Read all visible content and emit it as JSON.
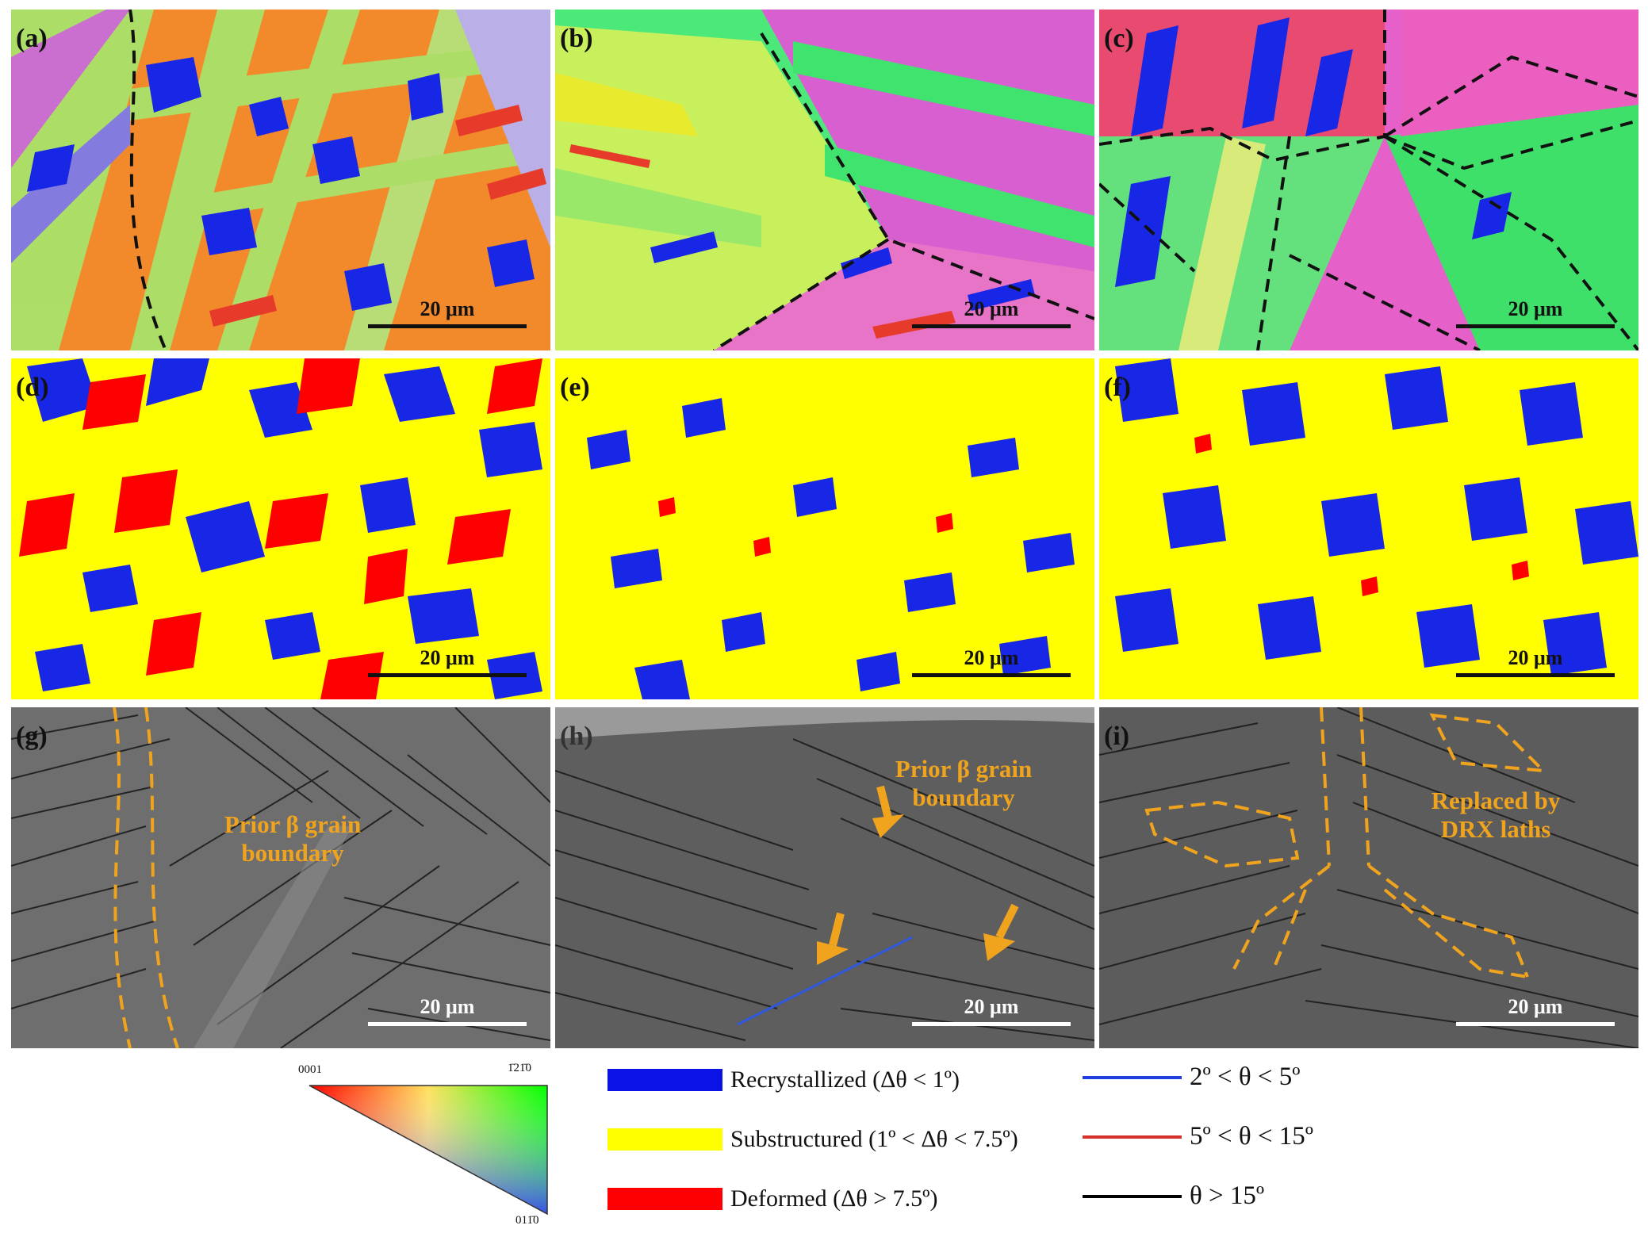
{
  "panels": [
    {
      "id": "a",
      "label": "(a)",
      "scale": "20 μm"
    },
    {
      "id": "b",
      "label": "(b)",
      "scale": "20 μm"
    },
    {
      "id": "c",
      "label": "(c)",
      "scale": "20 μm"
    },
    {
      "id": "d",
      "label": "(d)",
      "scale": "20 μm"
    },
    {
      "id": "e",
      "label": "(e)",
      "scale": "20 μm"
    },
    {
      "id": "f",
      "label": "(f)",
      "scale": "20 μm"
    },
    {
      "id": "g",
      "label": "(g)",
      "scale": "20 μm"
    },
    {
      "id": "h",
      "label": "(h)",
      "scale": "20 μm"
    },
    {
      "id": "i",
      "label": "(i)",
      "scale": "20 μm"
    }
  ],
  "annotations": {
    "g_note": "Prior β grain boundary",
    "h_note": "Prior β grain boundary",
    "i_note": "Replaced by DRX laths"
  },
  "ipf_key": {
    "top_left": "0001",
    "top_right": "1̄21̄0",
    "bottom": "011̄0"
  },
  "legend_fractions": [
    {
      "label": "Recrystallized (Δθ < 1º)",
      "color": "#0a12e6"
    },
    {
      "label": "Substructured (1º < Δθ < 7.5º)",
      "color": "#ffff00"
    },
    {
      "label": "Deformed (Δθ > 7.5º)",
      "color": "#ff0000"
    }
  ],
  "legend_boundaries": [
    {
      "label": "2º < θ < 5º",
      "color": "#1f3fe0"
    },
    {
      "label": "5º < θ < 15º",
      "color": "#d6302a"
    },
    {
      "label": "θ > 15º",
      "color": "#000000"
    }
  ]
}
